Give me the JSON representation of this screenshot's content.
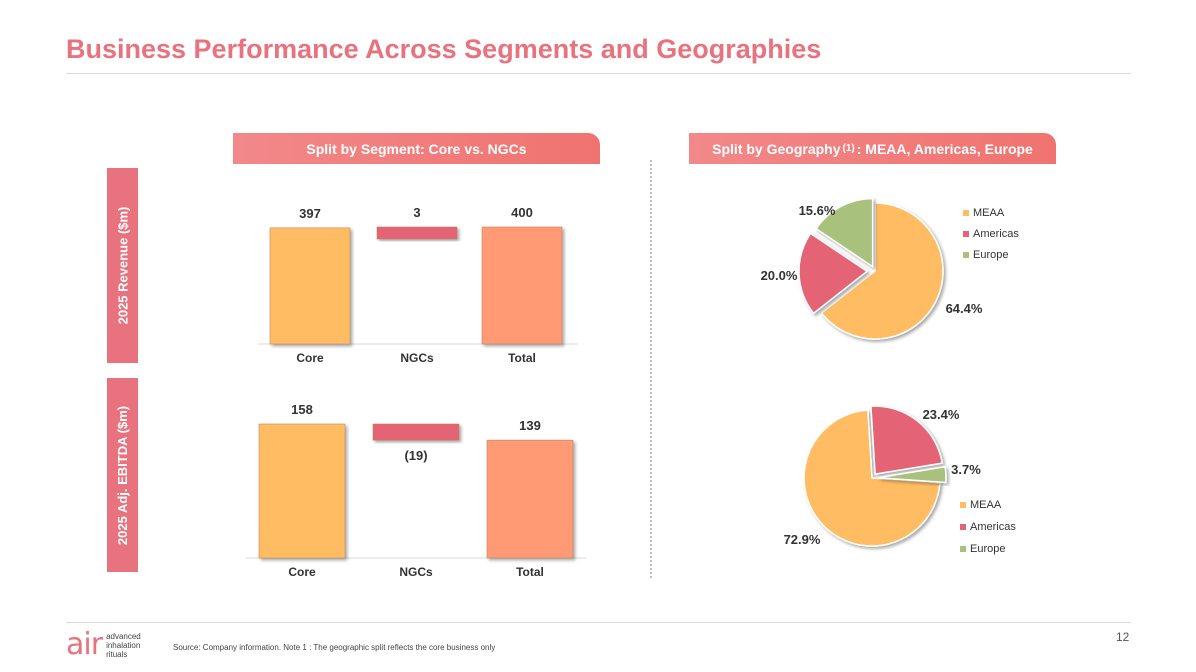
{
  "title": "Business Performance Across Segments and Geographies",
  "headers": {
    "segment": "Split by Segment: Core vs. NGCs",
    "geography_pre": "Split by Geography",
    "geography_sup": "(1)",
    "geography_post": ": MEAA, Americas, Europe"
  },
  "row_labels": {
    "revenue": "2025 Revenue ($m)",
    "ebitda": "2025 Adj. EBITDA ($m)"
  },
  "colors": {
    "core": "#ffbc63",
    "ngcs": "#e46475",
    "total": "#ff9a74",
    "meaa": "#ffbc63",
    "americas": "#e46475",
    "europe": "#a8c17c"
  },
  "chart_data": [
    {
      "type": "bar",
      "subtype": "waterfall",
      "categories": [
        "Core",
        "NGCs",
        "Total"
      ],
      "values": [
        397,
        3,
        400
      ],
      "labels": [
        "397",
        "3",
        "400"
      ],
      "bases": [
        0,
        397,
        0
      ]
    },
    {
      "type": "bar",
      "subtype": "waterfall",
      "categories": [
        "Core",
        "NGCs",
        "Total"
      ],
      "values": [
        158,
        -19,
        139
      ],
      "labels": [
        "158",
        "(19)",
        "139"
      ],
      "bases": [
        0,
        158,
        0
      ]
    },
    {
      "type": "pie",
      "labels": [
        "MEAA",
        "Americas",
        "Europe"
      ],
      "values": [
        64.4,
        20.0,
        15.6
      ],
      "value_labels": [
        "64.4%",
        "20.0%",
        "15.6%"
      ],
      "legend": [
        "MEAA",
        "Americas",
        "Europe"
      ]
    },
    {
      "type": "pie",
      "labels": [
        "MEAA",
        "Americas",
        "Europe"
      ],
      "values": [
        72.9,
        23.4,
        3.7
      ],
      "value_labels": [
        "72.9%",
        "23.4%",
        "3.7%"
      ],
      "legend": [
        "MEAA",
        "Americas",
        "Europe"
      ]
    }
  ],
  "footer": {
    "source": "Source: Company information. Note 1 : The geographic split reflects the core business only",
    "page": "12",
    "logo_mark": "air",
    "logo_lines": [
      "advanced",
      "inhalation",
      "rituals"
    ]
  }
}
